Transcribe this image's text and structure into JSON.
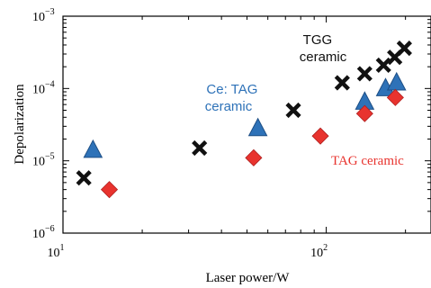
{
  "chart_data": {
    "type": "scatter",
    "title": "",
    "xlabel": "Laser power/W",
    "ylabel": "Depolarization",
    "x_scale": "log",
    "y_scale": "log",
    "xlim": [
      10,
      250
    ],
    "ylim": [
      1e-06,
      0.001
    ],
    "grid": false,
    "x_ticks": [
      {
        "base": "10",
        "exp": "1"
      },
      {
        "base": "10",
        "exp": "2"
      }
    ],
    "y_ticks": [
      {
        "base": "10",
        "exp": "−6"
      },
      {
        "base": "10",
        "exp": "−5"
      },
      {
        "base": "10",
        "exp": "−4"
      },
      {
        "base": "10",
        "exp": "−3"
      }
    ],
    "series": [
      {
        "name": "TGG ceramic",
        "marker": "x",
        "color": "#111111",
        "points": [
          {
            "x": 12,
            "y": 5.8e-06
          },
          {
            "x": 33,
            "y": 1.5e-05
          },
          {
            "x": 75,
            "y": 5e-05
          },
          {
            "x": 115,
            "y": 0.00012
          },
          {
            "x": 140,
            "y": 0.00016
          },
          {
            "x": 165,
            "y": 0.00021
          },
          {
            "x": 182,
            "y": 0.00027
          },
          {
            "x": 198,
            "y": 0.00036
          }
        ]
      },
      {
        "name": "Ce: TAG ceramic",
        "marker": "triangle",
        "color": "#2e72b8",
        "points": [
          {
            "x": 13,
            "y": 1.4e-05
          },
          {
            "x": 55,
            "y": 2.8e-05
          },
          {
            "x": 140,
            "y": 6.5e-05
          },
          {
            "x": 168,
            "y": 0.0001
          },
          {
            "x": 185,
            "y": 0.00012
          }
        ]
      },
      {
        "name": "TAG ceramic",
        "marker": "diamond",
        "color": "#e8332e",
        "points": [
          {
            "x": 15,
            "y": 4e-06
          },
          {
            "x": 53,
            "y": 1.1e-05
          },
          {
            "x": 95,
            "y": 2.2e-05
          },
          {
            "x": 140,
            "y": 4.5e-05
          },
          {
            "x": 183,
            "y": 7.5e-05
          }
        ]
      }
    ],
    "annotations": [
      {
        "lines": [
          "TGG",
          "ceramic"
        ],
        "color": "#111111",
        "series": "TGG ceramic"
      },
      {
        "lines": [
          "Ce: TAG",
          "ceramic"
        ],
        "color": "#2e72b8",
        "series": "Ce: TAG ceramic"
      },
      {
        "lines": [
          "TAG ceramic"
        ],
        "color": "#e8332e",
        "series": "TAG ceramic"
      }
    ]
  }
}
